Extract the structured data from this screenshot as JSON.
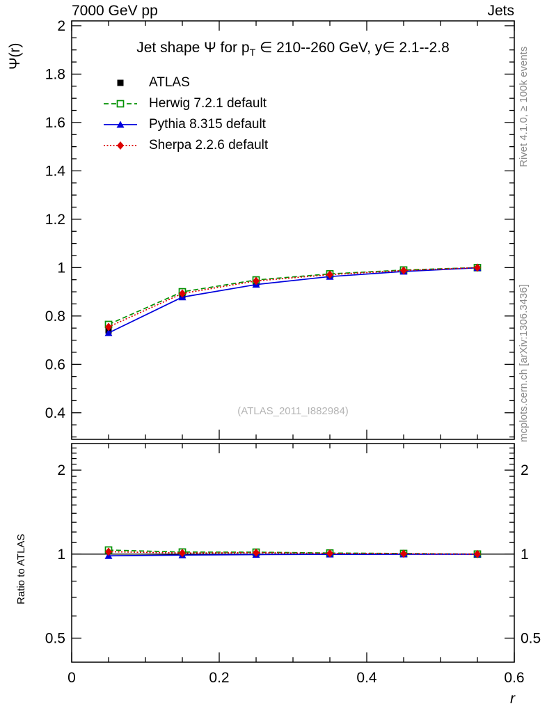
{
  "header": {
    "left": "7000 GeV pp",
    "right": "Jets"
  },
  "plot": {
    "title_pre": "Jet shape Ψ for p",
    "title_sub": "T",
    "title_post": " ∈ 210--260 GeV, y∈ 2.1--2.8",
    "watermark": "(ATLAS_2011_I882984)",
    "side_note_top": "Rivet 4.1.0, ≥ 100k events",
    "side_note_bottom": "mcplots.cern.ch [arXiv:1306.3436]",
    "x_axis_label": "r",
    "main_y_axis_label": "Ψ(r)",
    "ratio_y_axis_label": "Ratio to ATLAS"
  },
  "chart_data": [
    {
      "type": "line",
      "panel": "main",
      "title": "Jet shape Ψ for pT ∈ 210--260 GeV, y∈ 2.1--2.8",
      "xlabel": "r",
      "ylabel": "Ψ(r)",
      "xlim": [
        0,
        0.6
      ],
      "ylim": [
        0.29,
        2.02
      ],
      "x_major_ticks": [
        0,
        0.2,
        0.4,
        0.6
      ],
      "x_tick_labels": [
        "0",
        "0.2",
        "0.4",
        "0.6"
      ],
      "x_minor_step": 0.05,
      "y_major_ticks": [
        0.4,
        0.6,
        0.8,
        1,
        1.2,
        1.4,
        1.6,
        1.8,
        2
      ],
      "y_tick_labels": [
        "0.4",
        "0.6",
        "0.8",
        "1",
        "1.2",
        "1.4",
        "1.6",
        "1.8",
        "2"
      ],
      "y_minor_step": 0.05,
      "grid": false,
      "legend_position": "top-left",
      "x": [
        0.05,
        0.15,
        0.25,
        0.35,
        0.45,
        0.55
      ],
      "series": [
        {
          "name": "ATLAS",
          "color": "#000000",
          "marker": "square-filled",
          "line": "none",
          "values": [
            0.74,
            0.885,
            0.934,
            0.965,
            0.985,
            1.0
          ]
        },
        {
          "name": "Herwig 7.2.1 default",
          "color": "#009100",
          "marker": "square-open",
          "line": "dashed",
          "values": [
            0.765,
            0.9,
            0.949,
            0.974,
            0.99,
            1.0
          ]
        },
        {
          "name": "Pythia 8.315 default",
          "color": "#0000dd",
          "marker": "triangle-filled",
          "line": "solid",
          "values": [
            0.73,
            0.878,
            0.93,
            0.963,
            0.984,
            0.999
          ]
        },
        {
          "name": "Sherpa 2.2.6 default",
          "color": "#dd0000",
          "marker": "diamond-filled",
          "line": "dotted",
          "values": [
            0.755,
            0.893,
            0.945,
            0.971,
            0.988,
            1.0
          ]
        }
      ]
    },
    {
      "type": "line",
      "panel": "ratio",
      "ylabel": "Ratio to ATLAS",
      "yscale": "log",
      "xlim": [
        0,
        0.6
      ],
      "ylim": [
        0.41,
        2.49
      ],
      "y_major_ticks": [
        0.5,
        1,
        2
      ],
      "y_tick_labels": [
        "0.5",
        "1",
        "2"
      ],
      "y_minor_ticks": [
        0.6,
        0.7,
        0.8,
        0.9,
        1.1,
        1.2,
        1.3,
        1.4,
        1.5,
        1.6,
        1.7,
        1.8,
        1.9,
        2.1,
        2.2,
        2.3,
        2.4
      ],
      "reference_line": 1,
      "x": [
        0.05,
        0.15,
        0.25,
        0.35,
        0.45,
        0.55
      ],
      "series": [
        {
          "name": "Herwig 7.2.1 default",
          "color": "#009100",
          "marker": "square-open",
          "line": "dashed",
          "values": [
            1.034,
            1.017,
            1.016,
            1.009,
            1.005,
            1.0
          ]
        },
        {
          "name": "Pythia 8.315 default",
          "color": "#0000dd",
          "marker": "triangle-filled",
          "line": "solid",
          "values": [
            0.986,
            0.992,
            0.996,
            0.998,
            0.999,
            0.999
          ]
        },
        {
          "name": "Sherpa 2.2.6 default",
          "color": "#dd0000",
          "marker": "diamond-filled",
          "line": "dotted",
          "values": [
            1.02,
            1.009,
            1.012,
            1.006,
            1.003,
            1.0
          ]
        }
      ]
    }
  ]
}
